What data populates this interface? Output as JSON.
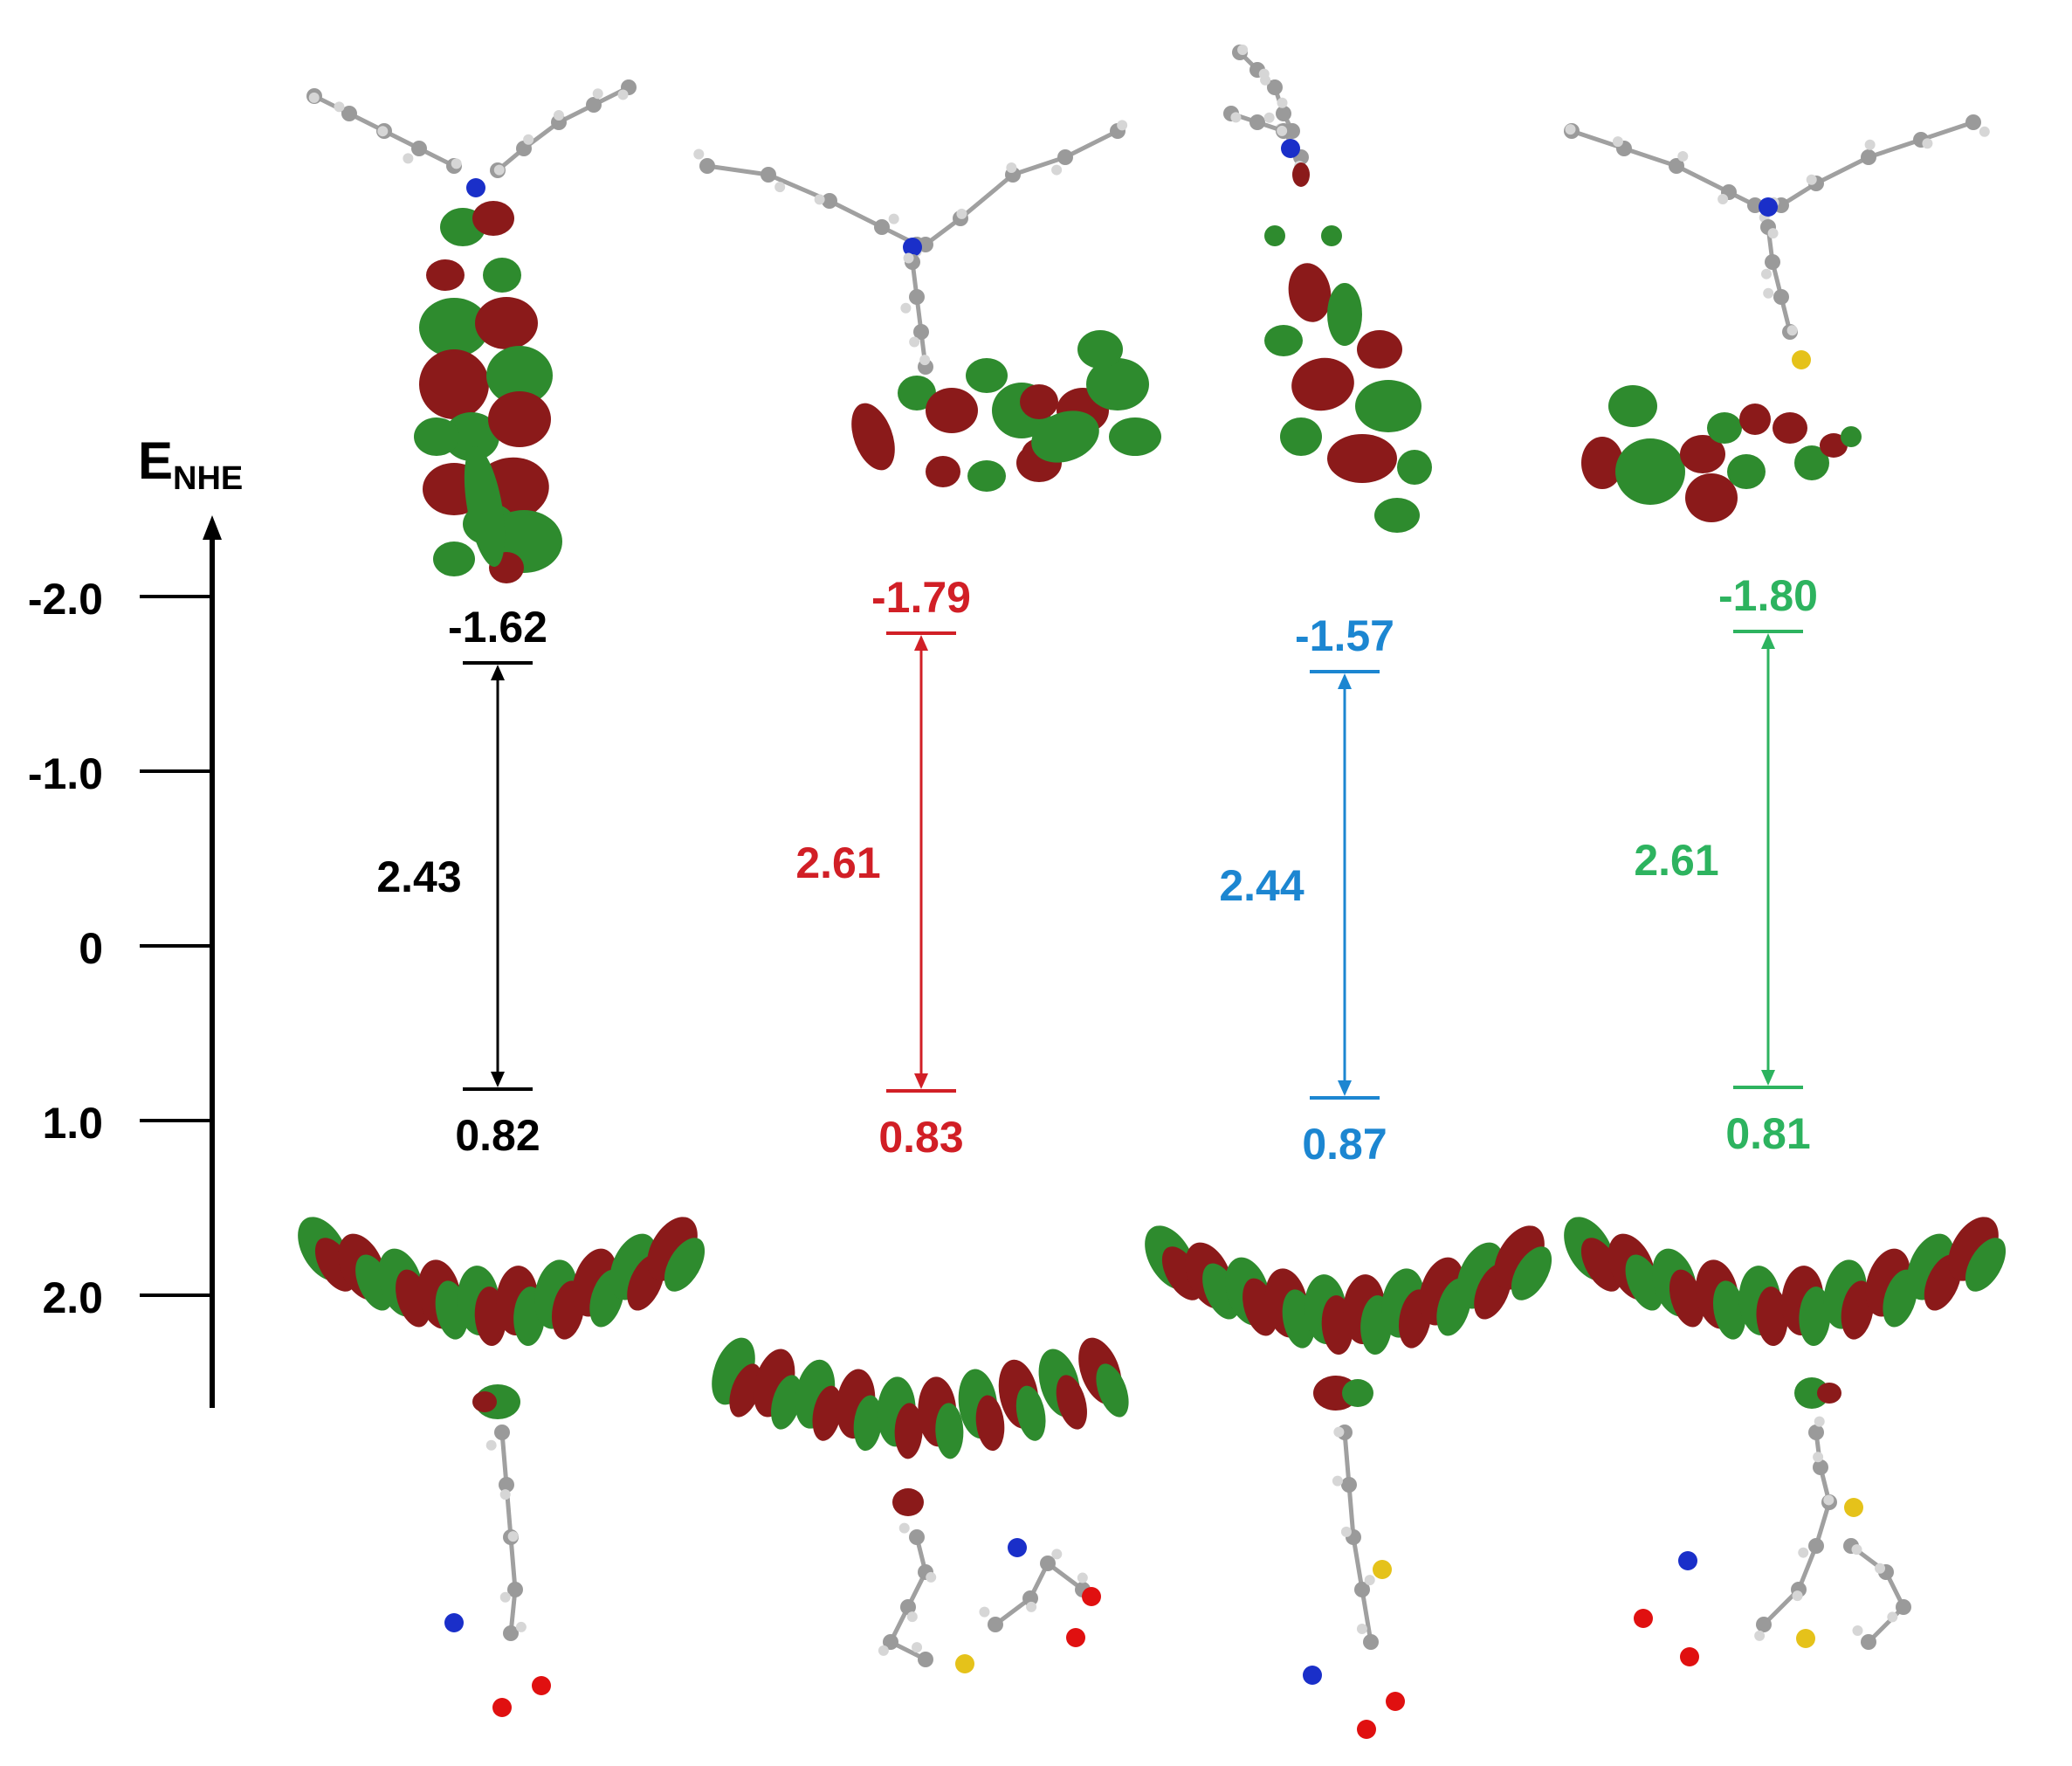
{
  "axis": {
    "label_main": "E",
    "label_sub": "NHE",
    "ticks": [
      {
        "label": "-2.0",
        "value": -2.0
      },
      {
        "label": "-1.0",
        "value": -1.0
      },
      {
        "label": "0",
        "value": 0
      },
      {
        "label": "1.0",
        "value": 1.0
      },
      {
        "label": "2.0",
        "value": 2.0
      }
    ]
  },
  "dyes": [
    {
      "color": "#000000",
      "lumo": {
        "label": "-1.62",
        "value": -1.62
      },
      "homo": {
        "label": "0.82",
        "value": 0.82
      },
      "gap": {
        "label": "2.43",
        "value": 2.43
      },
      "lumo_orbital_shape": "vertical-stack",
      "homo_orbital_shape": "wing"
    },
    {
      "color": "#d11f26",
      "lumo": {
        "label": "-1.79",
        "value": -1.79
      },
      "homo": {
        "label": "0.83",
        "value": 0.83
      },
      "gap": {
        "label": "2.61",
        "value": 2.61
      },
      "lumo_orbital_shape": "horizontal-band",
      "homo_orbital_shape": "arc"
    },
    {
      "color": "#1c86d1",
      "lumo": {
        "label": "-1.57",
        "value": -1.57
      },
      "homo": {
        "label": "0.87",
        "value": 0.87
      },
      "gap": {
        "label": "2.44",
        "value": 2.44
      },
      "lumo_orbital_shape": "diagonal",
      "homo_orbital_shape": "wing"
    },
    {
      "color": "#2db35f",
      "lumo": {
        "label": "-1.80",
        "value": -1.8
      },
      "homo": {
        "label": "0.81",
        "value": 0.81
      },
      "gap": {
        "label": "2.61",
        "value": 2.61
      },
      "lumo_orbital_shape": "horizontal-band",
      "homo_orbital_shape": "wing"
    }
  ],
  "orbital_colors": {
    "positive": "#8b1a1a",
    "negative": "#2e8b2e"
  },
  "atom_colors": {
    "carbon": "#9a9a9a",
    "hydrogen": "#d6d6d6",
    "nitrogen": "#1a2fc9",
    "oxygen": "#e01010",
    "sulfur": "#e5c21a"
  }
}
